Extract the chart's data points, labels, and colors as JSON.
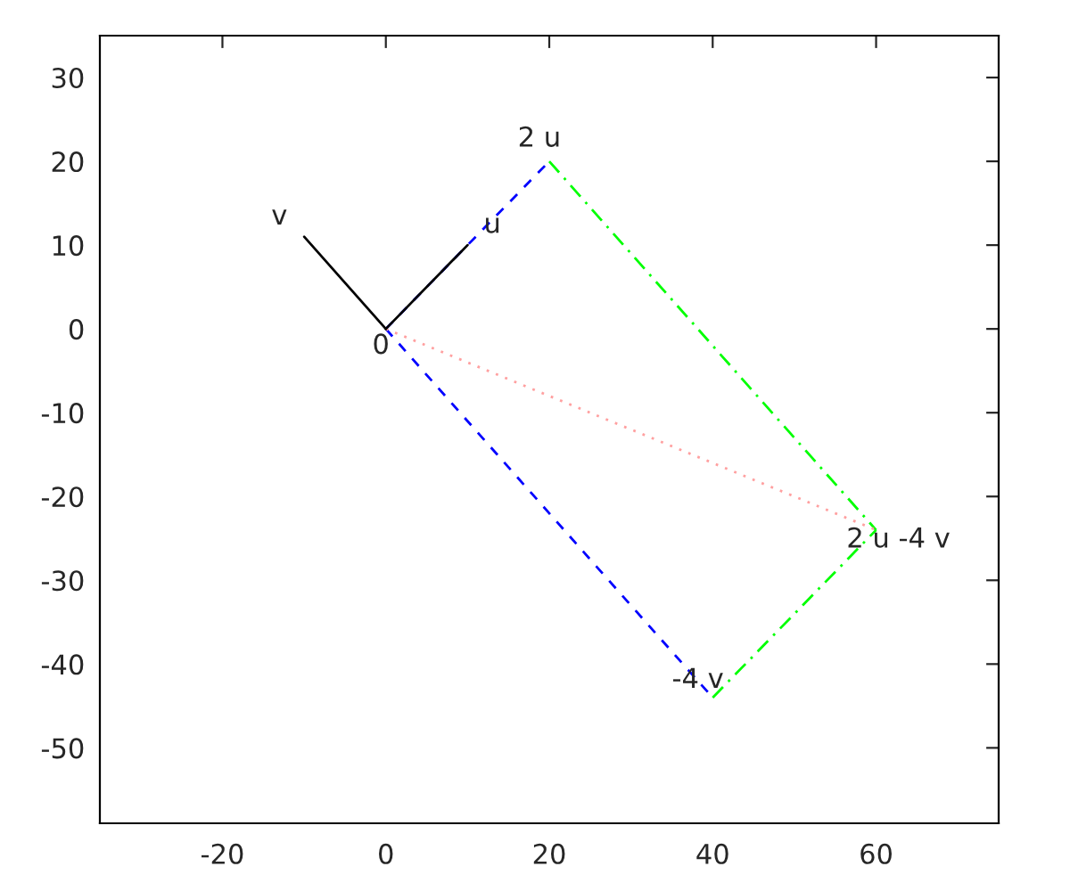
{
  "chart_data": {
    "type": "line",
    "xlim": [
      -35,
      75
    ],
    "ylim": [
      -59,
      35
    ],
    "xticks": [
      -20,
      0,
      20,
      40,
      60
    ],
    "yticks": [
      -50,
      -40,
      -30,
      -20,
      -10,
      0,
      10,
      20,
      30
    ],
    "grid": false,
    "legend": false,
    "series": [
      {
        "x": [
          0,
          20
        ],
        "values": [
          0,
          20
        ],
        "color": "#0000ff",
        "line_style": "dashed"
      },
      {
        "x": [
          0,
          40
        ],
        "values": [
          0,
          -44
        ],
        "color": "#0000ff",
        "line_style": "dashed"
      },
      {
        "x": [
          20,
          60
        ],
        "values": [
          20,
          -24
        ],
        "color": "#00ff00",
        "line_style": "dashdot"
      },
      {
        "x": [
          40,
          60
        ],
        "values": [
          -44,
          -24
        ],
        "color": "#00ff00",
        "line_style": "dashdot"
      },
      {
        "x": [
          0,
          60
        ],
        "values": [
          0,
          -24
        ],
        "color": "#ffa0a0",
        "line_style": "dotted"
      },
      {
        "x": [
          0,
          10
        ],
        "values": [
          0,
          10
        ],
        "color": "#000000",
        "line_style": "solid"
      },
      {
        "x": [
          0,
          -10
        ],
        "values": [
          0,
          11
        ],
        "color": "#000000",
        "line_style": "solid"
      }
    ],
    "annotations": [
      {
        "text": "0",
        "x": 0,
        "y": 0
      },
      {
        "text": "u",
        "x": 10,
        "y": 10
      },
      {
        "text": "v",
        "x": -10,
        "y": 11
      },
      {
        "text": "2 u",
        "x": 20,
        "y": 20
      },
      {
        "text": "-4 v",
        "x": 40,
        "y": -44
      },
      {
        "text": "2 u -4 v",
        "x": 60,
        "y": -24
      }
    ]
  }
}
